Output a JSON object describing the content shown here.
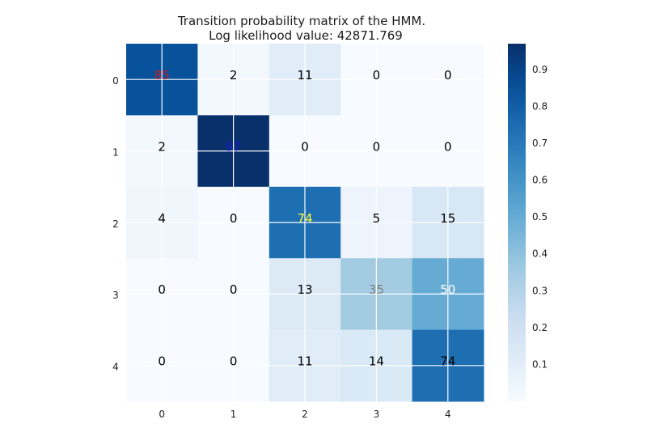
{
  "chart_data": {
    "type": "heatmap",
    "title": "Transition probability matrix of the HMM.",
    "subtitle": "Log likelihood value: 42871.769",
    "x_categories": [
      "0",
      "1",
      "2",
      "3",
      "4"
    ],
    "y_categories": [
      "0",
      "1",
      "2",
      "3",
      "4"
    ],
    "values": [
      [
        85,
        2,
        11,
        0,
        0
      ],
      [
        2,
        97,
        0,
        0,
        0
      ],
      [
        4,
        0,
        74,
        5,
        15
      ],
      [
        0,
        0,
        13,
        35,
        50
      ],
      [
        0,
        0,
        11,
        14,
        74
      ]
    ],
    "cell_labels": [
      [
        "85",
        "2",
        "11",
        "0",
        "0"
      ],
      [
        "2",
        "97",
        "0",
        "0",
        "0"
      ],
      [
        "4",
        "0",
        "74",
        "5",
        "15"
      ],
      [
        "0",
        "0",
        "13",
        "35",
        "50"
      ],
      [
        "0",
        "0",
        "11",
        "14",
        "74"
      ]
    ],
    "diagonal_label_colors": [
      "#c0202a",
      "#1a1acc",
      "#ffff33",
      "#808080",
      "#000000"
    ],
    "off_diagonal_label_color": "#000000",
    "highlight_label_color": "#ffffff",
    "colormap": "Blues",
    "colorbar": {
      "range": [
        0.0,
        0.97
      ],
      "ticks": [
        "0.1",
        "0.2",
        "0.3",
        "0.4",
        "0.5",
        "0.6",
        "0.7",
        "0.8",
        "0.9"
      ],
      "tick_values": [
        0.1,
        0.2,
        0.3,
        0.4,
        0.5,
        0.6,
        0.7,
        0.8,
        0.9
      ]
    },
    "grid": true,
    "grid_color": "#ffffff"
  }
}
